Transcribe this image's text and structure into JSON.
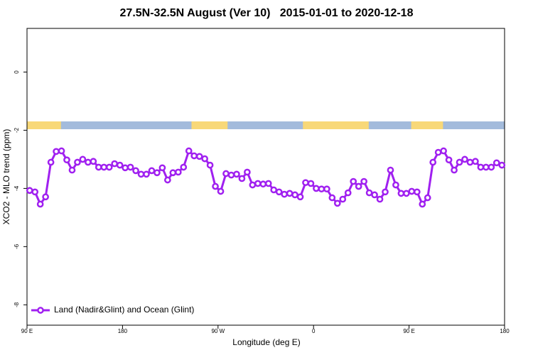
{
  "chart_data": {
    "type": "line",
    "title": "27.5N-32.5N August (Ver 10)   2015-01-01 to 2020-12-18",
    "xlabel": "Longitude (deg E)",
    "ylabel": "XCO2 - MLO trend (ppm)",
    "xlim": [
      90,
      540
    ],
    "ylim": [
      -8.7,
      1.5
    ],
    "xticks": [
      {
        "value": 90,
        "label": "90 E"
      },
      {
        "value": 180,
        "label": "180"
      },
      {
        "value": 270,
        "label": "90 W"
      },
      {
        "value": 360,
        "label": "0"
      },
      {
        "value": 450,
        "label": "90 E"
      },
      {
        "value": 540,
        "label": "180"
      }
    ],
    "yticks": [
      0,
      -2,
      -4,
      -6,
      -8
    ],
    "legend": "bottom-left",
    "land_color": "#f8d878",
    "ocean_color": "#a3bbdc",
    "land_ranges": [
      [
        90,
        122
      ],
      [
        245,
        279
      ],
      [
        350,
        412
      ],
      [
        452,
        482
      ]
    ],
    "x": [
      92.5,
      97.5,
      102.5,
      107.5,
      112.5,
      117.5,
      122.5,
      127.5,
      132.5,
      137.5,
      142.5,
      147.5,
      152.5,
      157.5,
      162.5,
      167.5,
      172.5,
      177.5,
      182.5,
      187.5,
      192.5,
      197.5,
      202.5,
      207.5,
      212.5,
      217.5,
      222.5,
      227.5,
      232.5,
      237.5,
      242.5,
      247.5,
      252.5,
      257.5,
      262.5,
      267.5,
      272.5,
      277.5,
      282.5,
      287.5,
      292.5,
      297.5,
      302.5,
      307.5,
      312.5,
      317.5,
      322.5,
      327.5,
      332.5,
      337.5,
      342.5,
      347.5,
      352.5,
      357.5,
      362.5,
      367.5,
      372.5,
      377.5,
      382.5,
      387.5,
      392.5,
      397.5,
      402.5,
      407.5,
      412.5,
      417.5,
      422.5,
      427.5,
      432.5,
      437.5,
      442.5,
      447.5,
      452.5,
      457.5,
      462.5,
      467.5,
      472.5,
      477.5,
      482.5,
      487.5,
      492.5,
      497.5,
      502.5,
      507.5,
      512.5,
      517.5,
      522.5,
      527.5,
      532.5,
      537.5
    ],
    "series": [
      {
        "name": "Land (Nadir&Glint) and Ocean (Glint)",
        "color": "#a020f0",
        "values": [
          -4.07,
          -4.12,
          -4.54,
          -4.29,
          -3.1,
          -2.73,
          -2.71,
          -3.02,
          -3.37,
          -3.1,
          -3.0,
          -3.1,
          -3.07,
          -3.27,
          -3.27,
          -3.27,
          -3.15,
          -3.2,
          -3.29,
          -3.27,
          -3.39,
          -3.51,
          -3.51,
          -3.39,
          -3.46,
          -3.29,
          -3.71,
          -3.46,
          -3.44,
          -3.27,
          -2.71,
          -2.88,
          -2.9,
          -2.98,
          -3.2,
          -3.93,
          -4.1,
          -3.49,
          -3.54,
          -3.51,
          -3.66,
          -3.44,
          -3.88,
          -3.83,
          -3.85,
          -3.83,
          -4.05,
          -4.12,
          -4.2,
          -4.17,
          -4.22,
          -4.29,
          -3.8,
          -3.83,
          -4.0,
          -4.02,
          -4.02,
          -4.32,
          -4.51,
          -4.37,
          -4.15,
          -3.76,
          -3.93,
          -3.76,
          -4.15,
          -4.22,
          -4.37,
          -4.12,
          -3.37,
          -3.88,
          -4.17,
          -4.17,
          -4.1,
          -4.12,
          -4.54,
          -4.32,
          -3.1,
          -2.76,
          -2.71,
          -3.02,
          -3.37,
          -3.1,
          -3.0,
          -3.1,
          -3.07,
          -3.27,
          -3.27,
          -3.27,
          -3.12,
          -3.2
        ]
      }
    ]
  }
}
